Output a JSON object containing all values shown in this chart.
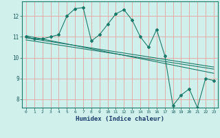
{
  "xlabel": "Humidex (Indice chaleur)",
  "bg_color": "#cff0eb",
  "grid_color": "#e8a0a0",
  "line_color": "#1a7a6a",
  "x_min": -0.5,
  "x_max": 23.5,
  "y_min": 7.6,
  "y_max": 12.7,
  "yticks": [
    8,
    9,
    10,
    11,
    12
  ],
  "xticks": [
    0,
    1,
    2,
    3,
    4,
    5,
    6,
    7,
    8,
    9,
    10,
    11,
    12,
    13,
    14,
    15,
    16,
    17,
    18,
    19,
    20,
    21,
    22,
    23
  ],
  "series1_x": [
    0,
    1,
    2,
    3,
    4,
    5,
    6,
    7,
    8,
    9,
    10,
    11,
    12,
    13,
    14,
    15,
    16,
    17,
    18,
    19,
    20,
    21,
    22,
    23
  ],
  "series1_y": [
    11.0,
    10.9,
    10.9,
    11.0,
    11.1,
    12.0,
    12.35,
    12.4,
    10.8,
    11.1,
    11.6,
    12.1,
    12.3,
    11.8,
    11.0,
    10.5,
    11.35,
    10.1,
    7.7,
    8.2,
    8.5,
    7.6,
    9.0,
    8.9
  ],
  "trend1_x": [
    0,
    23
  ],
  "trend1_y": [
    11.05,
    9.25
  ],
  "trend2_x": [
    0,
    23
  ],
  "trend2_y": [
    10.95,
    9.55
  ],
  "trend3_x": [
    0,
    23
  ],
  "trend3_y": [
    10.85,
    9.45
  ]
}
